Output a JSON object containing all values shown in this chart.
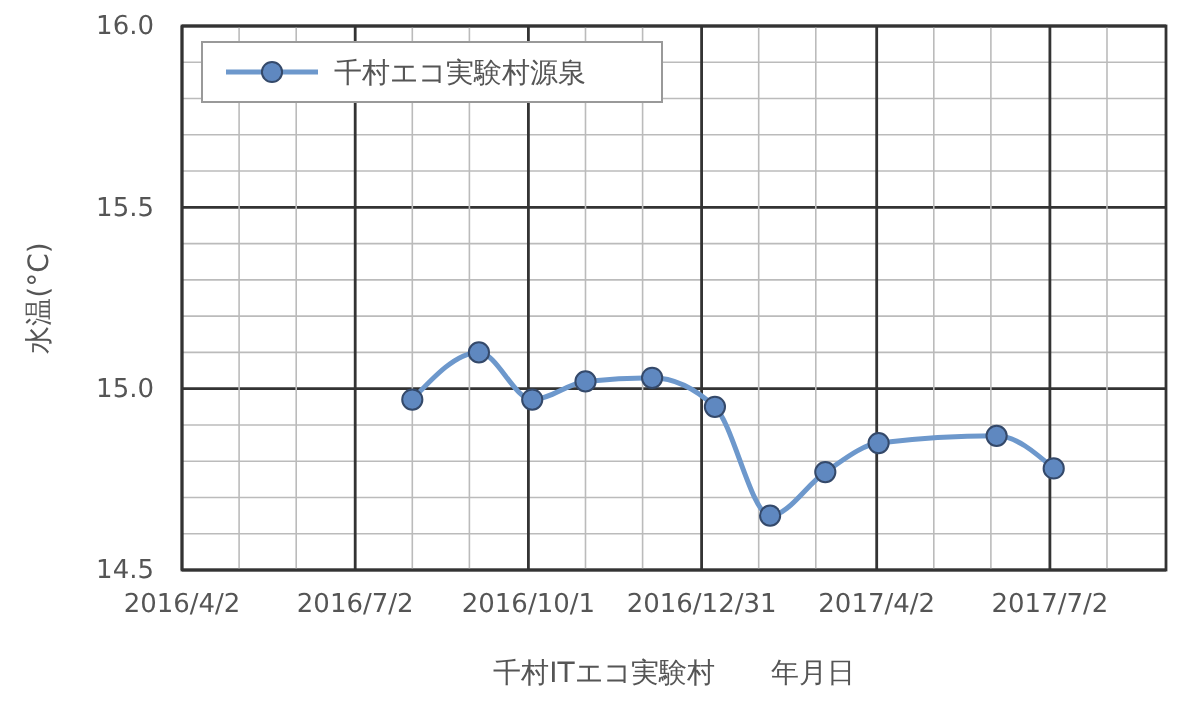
{
  "chart_data": {
    "type": "line",
    "xlabel": "千村ITエコ実験村　　年月日",
    "ylabel": "水温(°C)",
    "x": [
      "2016-08-01",
      "2016-09-05",
      "2016-10-03",
      "2016-10-31",
      "2016-12-05",
      "2017-01-07",
      "2017-02-05",
      "2017-03-06",
      "2017-04-03",
      "2017-06-04",
      "2017-07-04"
    ],
    "series": [
      {
        "name": "千村エコ実験村源泉",
        "color": "#6d98cc",
        "values": [
          14.97,
          15.1,
          14.97,
          15.02,
          15.03,
          14.95,
          14.65,
          14.77,
          14.85,
          14.87,
          14.78
        ]
      }
    ],
    "xlim": [
      "2016-04-02",
      "2017-09-01"
    ],
    "xticks": [
      {
        "value": "2016-04-02",
        "label": "2016/4/2"
      },
      {
        "value": "2016-05-02",
        "label": null
      },
      {
        "value": "2016-06-01",
        "label": null
      },
      {
        "value": "2016-07-02",
        "label": "2016/7/2"
      },
      {
        "value": "2016-08-01",
        "label": null
      },
      {
        "value": "2016-08-31",
        "label": null
      },
      {
        "value": "2016-10-01",
        "label": "2016/10/1"
      },
      {
        "value": "2016-10-31",
        "label": null
      },
      {
        "value": "2016-11-30",
        "label": null
      },
      {
        "value": "2016-12-31",
        "label": "2016/12/31"
      },
      {
        "value": "2017-01-30",
        "label": null
      },
      {
        "value": "2017-03-01",
        "label": null
      },
      {
        "value": "2017-04-02",
        "label": "2017/4/2"
      },
      {
        "value": "2017-05-02",
        "label": null
      },
      {
        "value": "2017-06-01",
        "label": null
      },
      {
        "value": "2017-07-02",
        "label": "2017/7/2"
      },
      {
        "value": "2017-08-01",
        "label": null
      }
    ],
    "ylim": [
      14.5,
      16.0
    ],
    "yticks": [
      {
        "value": 14.5,
        "label": "14.5"
      },
      {
        "value": 14.6,
        "label": null
      },
      {
        "value": 14.7,
        "label": null
      },
      {
        "value": 14.8,
        "label": null
      },
      {
        "value": 14.9,
        "label": null
      },
      {
        "value": 15.0,
        "label": "15.0"
      },
      {
        "value": 15.1,
        "label": null
      },
      {
        "value": 15.2,
        "label": null
      },
      {
        "value": 15.3,
        "label": null
      },
      {
        "value": 15.4,
        "label": null
      },
      {
        "value": 15.5,
        "label": "15.5"
      },
      {
        "value": 15.6,
        "label": null
      },
      {
        "value": 15.7,
        "label": null
      },
      {
        "value": 15.8,
        "label": null
      },
      {
        "value": 15.9,
        "label": null
      },
      {
        "value": 16.0,
        "label": "16.0"
      }
    ],
    "grid": true,
    "legend": "top left",
    "marker": "circle",
    "line_style": "solid"
  }
}
